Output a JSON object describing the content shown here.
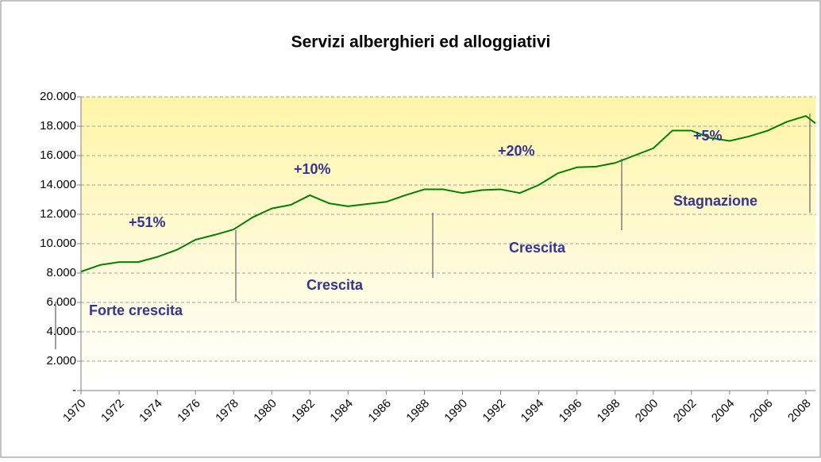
{
  "chart_data": {
    "type": "line",
    "title": "Servizi alberghieri ed alloggiativi",
    "x": [
      1970,
      1971,
      1972,
      1973,
      1974,
      1975,
      1976,
      1977,
      1978,
      1979,
      1980,
      1981,
      1982,
      1983,
      1984,
      1985,
      1986,
      1987,
      1988,
      1989,
      1990,
      1991,
      1992,
      1993,
      1994,
      1995,
      1996,
      1997,
      1998,
      1999,
      2000,
      2001,
      2002,
      2003,
      2004,
      2005,
      2006,
      2007,
      2008,
      2008.5
    ],
    "series": [
      {
        "name": "Servizi alberghieri ed alloggiativi",
        "color": "#008000",
        "values": [
          8100,
          8550,
          8750,
          8750,
          9100,
          9570,
          10270,
          10600,
          10970,
          11800,
          12400,
          12650,
          13300,
          12750,
          12550,
          12700,
          12850,
          13300,
          13700,
          13700,
          13450,
          13650,
          13700,
          13450,
          14000,
          14800,
          15200,
          15250,
          15500,
          16000,
          16500,
          17700,
          17700,
          17200,
          17000,
          17300,
          17700,
          18300,
          18700,
          18200
        ]
      }
    ],
    "xlim": [
      1970,
      2008.5
    ],
    "xticks": [
      1970,
      1972,
      1974,
      1976,
      1978,
      1980,
      1982,
      1984,
      1986,
      1988,
      1990,
      1992,
      1994,
      1996,
      1998,
      2000,
      2002,
      2004,
      2006,
      2008
    ],
    "ylim": [
      0,
      20000
    ],
    "yticks": [
      {
        "value": 0,
        "label": "-"
      },
      {
        "value": 2000,
        "label": "2.000"
      },
      {
        "value": 4000,
        "label": "4.000"
      },
      {
        "value": 6000,
        "label": "6.000"
      },
      {
        "value": 8000,
        "label": "8.000"
      },
      {
        "value": 10000,
        "label": "10.000"
      },
      {
        "value": 12000,
        "label": "12.000"
      },
      {
        "value": 14000,
        "label": "14.000"
      },
      {
        "value": 16000,
        "label": "16.000"
      },
      {
        "value": 18000,
        "label": "18.000"
      },
      {
        "value": 20000,
        "label": "20.000"
      }
    ],
    "grid": true,
    "annotations": [
      "+51%",
      "Forte crescita",
      "+10%",
      "Crescita",
      "+20%",
      "Crescita",
      "+5%",
      "Stagnazione"
    ]
  }
}
